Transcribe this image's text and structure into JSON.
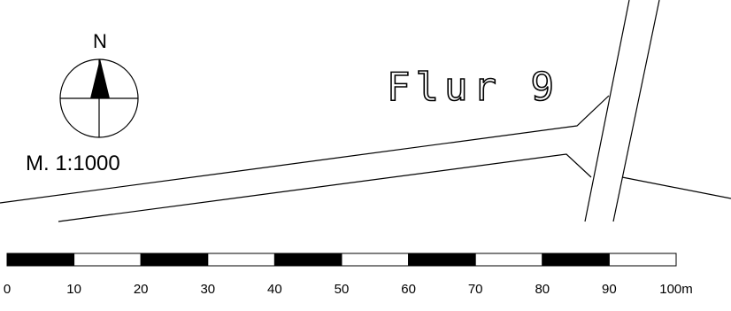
{
  "north_arrow": {
    "label": "N"
  },
  "scale": {
    "text": "M. 1:1000",
    "bar": {
      "ticks": [
        "0",
        "10",
        "20",
        "30",
        "40",
        "50",
        "60",
        "70",
        "80",
        "90",
        "100m"
      ],
      "segments": 10,
      "fill_pattern": [
        "black",
        "white",
        "black",
        "white",
        "black",
        "white",
        "black",
        "white",
        "black",
        "white"
      ]
    }
  },
  "parcel_label": "Flur 9",
  "colors": {
    "ink": "#000000",
    "paper": "#ffffff"
  }
}
